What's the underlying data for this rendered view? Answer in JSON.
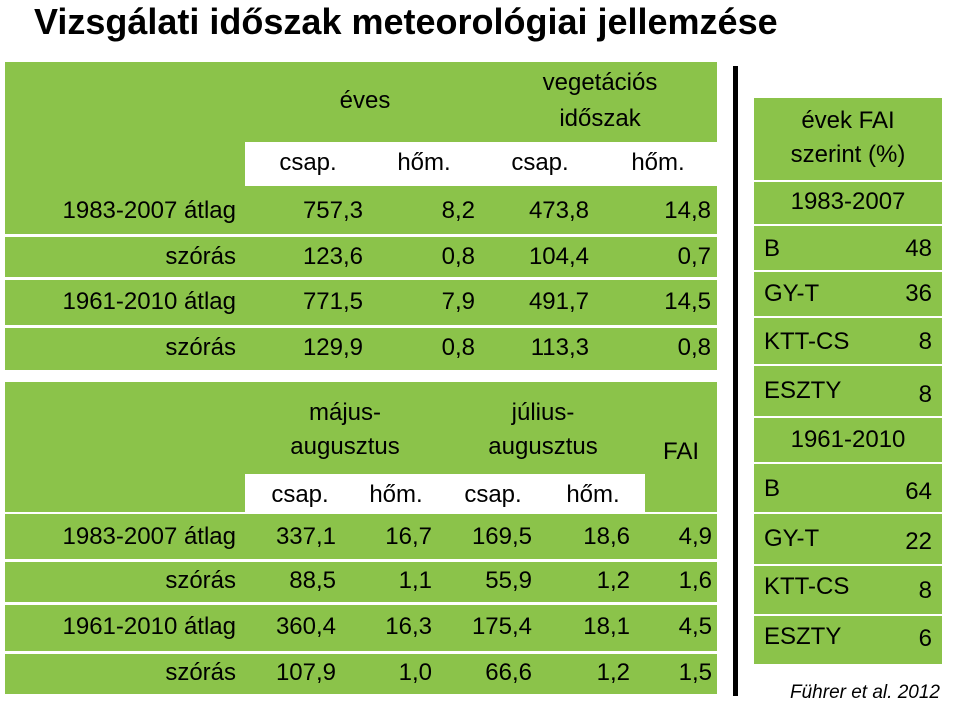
{
  "title": "Vizsgálati időszak meteorológiai jellemzése",
  "table1": {
    "group_eves": "éves",
    "group_veg_line1": "vegetációs",
    "group_veg_line2": "időszak",
    "sub_headers": [
      "csap.",
      "hőm.",
      "csap.",
      "hőm."
    ],
    "rows": [
      {
        "label": "1983-2007 átlag",
        "values": [
          "757,3",
          "8,2",
          "473,8",
          "14,8"
        ]
      },
      {
        "label": "szórás",
        "values": [
          "123,6",
          "0,8",
          "104,4",
          "0,7"
        ]
      },
      {
        "label": "1961-2010 átlag",
        "values": [
          "771,5",
          "7,9",
          "491,7",
          "14,5"
        ]
      },
      {
        "label": "szórás",
        "values": [
          "129,9",
          "0,8",
          "113,3",
          "0,8"
        ]
      }
    ]
  },
  "table2": {
    "group_majus_line1": "május-",
    "group_majus_line2": "augusztus",
    "group_julius_line1": "július-",
    "group_julius_line2": "augusztus",
    "fai_header": "FAI",
    "sub_headers": [
      "csap.",
      "hőm.",
      "csap.",
      "hőm."
    ],
    "rows": [
      {
        "label": "1983-2007 átlag",
        "values": [
          "337,1",
          "16,7",
          "169,5",
          "18,6",
          "4,9"
        ]
      },
      {
        "label": "szórás",
        "values": [
          "88,5",
          "1,1",
          "55,9",
          "1,2",
          "1,6"
        ]
      },
      {
        "label": "1961-2010 átlag",
        "values": [
          "360,4",
          "16,3",
          "175,4",
          "18,1",
          "4,5"
        ]
      },
      {
        "label": "szórás",
        "values": [
          "107,9",
          "1,0",
          "66,6",
          "1,2",
          "1,5"
        ]
      }
    ]
  },
  "right_table": {
    "header_line1": "évek FAI",
    "header_line2": "szerint (%)",
    "period1": "1983-2007",
    "period1_rows": [
      {
        "label": "B",
        "value": "48"
      },
      {
        "label": "GY-T",
        "value": "36"
      },
      {
        "label": "KTT-CS",
        "value": "8"
      },
      {
        "label": "ESZTY",
        "value": "8"
      }
    ],
    "period2": "1961-2010",
    "period2_rows": [
      {
        "label": "B",
        "value": "64"
      },
      {
        "label": "GY-T",
        "value": "22"
      },
      {
        "label": "KTT-CS",
        "value": "8"
      },
      {
        "label": "ESZTY",
        "value": "6"
      }
    ]
  },
  "citation": "Führer et al. 2012",
  "colors": {
    "accent_green": "#8bc34a",
    "background": "#ffffff",
    "text": "#000000"
  }
}
